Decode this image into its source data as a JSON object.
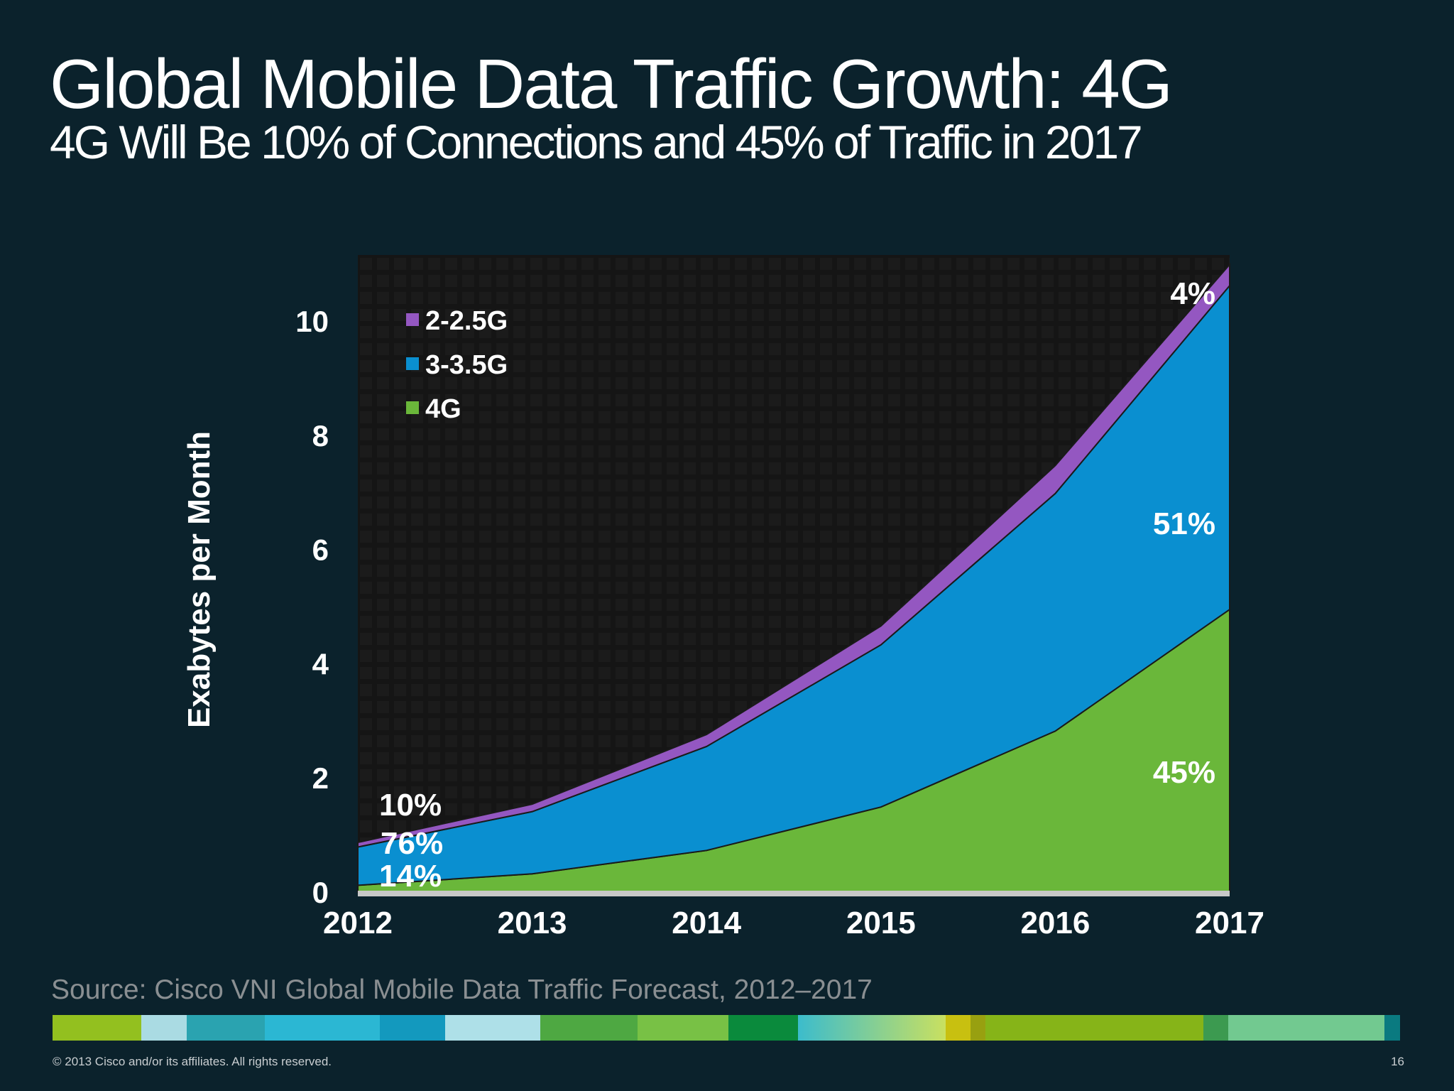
{
  "header": {
    "title": "Global Mobile Data Traffic Growth: 4G",
    "subtitle": "4G Will Be 10% of Connections and 45% of Traffic in 2017"
  },
  "chart_data": {
    "type": "area",
    "stacked": true,
    "categories": [
      "2012",
      "2013",
      "2014",
      "2015",
      "2016",
      "2017"
    ],
    "ylabel": "Exabytes per Month",
    "xlabel": "",
    "ylim": [
      0,
      11
    ],
    "yticks": [
      0,
      2,
      4,
      6,
      8,
      10
    ],
    "legend_position": "top-left",
    "series": [
      {
        "name": "4G",
        "color": "#6ab73a",
        "values": [
          0.12,
          0.32,
          0.73,
          1.49,
          2.82,
          4.95
        ]
      },
      {
        "name": "3-3.5G",
        "color": "#0a8fd0",
        "values": [
          0.67,
          1.09,
          1.82,
          2.84,
          4.16,
          5.67
        ]
      },
      {
        "name": "2-2.5G",
        "color": "#9457c1",
        "values": [
          0.08,
          0.13,
          0.21,
          0.33,
          0.49,
          0.37
        ]
      }
    ],
    "legend": [
      "2-2.5G",
      "3-3.5G",
      "4G"
    ],
    "annotations": {
      "2012": {
        "2-2.5G": "10%",
        "3-3.5G": "76%",
        "4G": "14%"
      },
      "2017": {
        "2-2.5G": "4%",
        "3-3.5G": "51%",
        "4G": "45%"
      }
    }
  },
  "source": "Source: Cisco VNI Global Mobile Data Traffic Forecast, 2012–2017",
  "footer": {
    "copyright": "© 2013 Cisco and/or its affiliates. All rights reserved.",
    "page_number": "16"
  },
  "colors": {
    "background": "#0b222c",
    "plot_background": "#161616",
    "strip": [
      "#93c01f",
      "#aadbe3",
      "#2aa3b0",
      "#2bb7d3",
      "#1399be",
      "#aee0e8",
      "#4ea842",
      "#78c145",
      "#0a8a3c",
      "#3cbccc",
      "#c8c010",
      "#98a010",
      "#86b418",
      "#3c9a50",
      "#72c990",
      "#0a7a80"
    ]
  }
}
